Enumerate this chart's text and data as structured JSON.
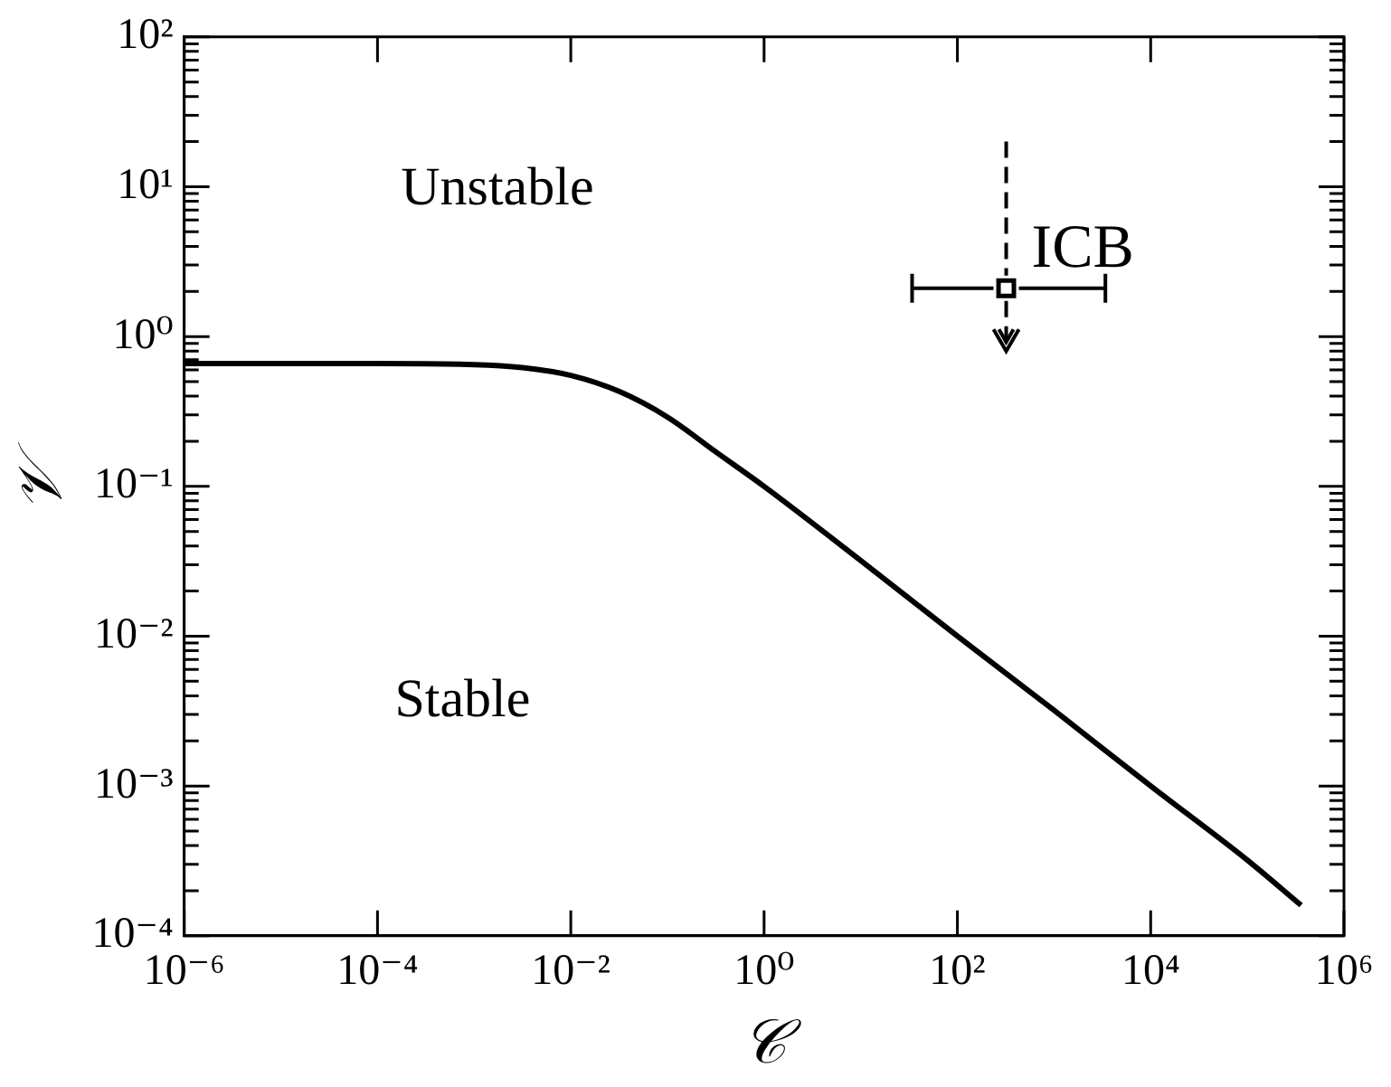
{
  "chart_data": {
    "type": "line",
    "xlabel": "𝒞",
    "ylabel": "𝒱",
    "log": "xy",
    "grid": false,
    "legend": false,
    "xlim": [
      1e-06,
      1000000.0
    ],
    "ylim": [
      0.0001,
      100
    ],
    "xticks": [
      {
        "value": 1e-06,
        "label": "10⁻⁶"
      },
      {
        "value": 0.0001,
        "label": "10⁻⁴"
      },
      {
        "value": 0.01,
        "label": "10⁻²"
      },
      {
        "value": 1,
        "label": "10⁰"
      },
      {
        "value": 100,
        "label": "10²"
      },
      {
        "value": 10000,
        "label": "10⁴"
      },
      {
        "value": 1000000,
        "label": "10⁶"
      }
    ],
    "yticks": [
      {
        "value": 0.0001,
        "label": "10⁻⁴"
      },
      {
        "value": 0.0002,
        "label": null
      },
      {
        "value": 0.0003,
        "label": null
      },
      {
        "value": 0.0004,
        "label": null
      },
      {
        "value": 0.0005,
        "label": null
      },
      {
        "value": 0.0006,
        "label": null
      },
      {
        "value": 0.0007,
        "label": null
      },
      {
        "value": 0.0008,
        "label": null
      },
      {
        "value": 0.0009,
        "label": null
      },
      {
        "value": 0.001,
        "label": "10⁻³"
      },
      {
        "value": 0.002,
        "label": null
      },
      {
        "value": 0.003,
        "label": null
      },
      {
        "value": 0.004,
        "label": null
      },
      {
        "value": 0.005,
        "label": null
      },
      {
        "value": 0.006,
        "label": null
      },
      {
        "value": 0.007,
        "label": null
      },
      {
        "value": 0.008,
        "label": null
      },
      {
        "value": 0.009,
        "label": null
      },
      {
        "value": 0.01,
        "label": "10⁻²"
      },
      {
        "value": 0.02,
        "label": null
      },
      {
        "value": 0.03,
        "label": null
      },
      {
        "value": 0.04,
        "label": null
      },
      {
        "value": 0.05,
        "label": null
      },
      {
        "value": 0.06,
        "label": null
      },
      {
        "value": 0.07,
        "label": null
      },
      {
        "value": 0.08,
        "label": null
      },
      {
        "value": 0.09,
        "label": null
      },
      {
        "value": 0.1,
        "label": "10⁻¹"
      },
      {
        "value": 0.2,
        "label": null
      },
      {
        "value": 0.3,
        "label": null
      },
      {
        "value": 0.4,
        "label": null
      },
      {
        "value": 0.5,
        "label": null
      },
      {
        "value": 0.6,
        "label": null
      },
      {
        "value": 0.7,
        "label": null
      },
      {
        "value": 0.8,
        "label": null
      },
      {
        "value": 0.9,
        "label": null
      },
      {
        "value": 1,
        "label": "10⁰"
      },
      {
        "value": 2,
        "label": null
      },
      {
        "value": 3,
        "label": null
      },
      {
        "value": 4,
        "label": null
      },
      {
        "value": 5,
        "label": null
      },
      {
        "value": 6,
        "label": null
      },
      {
        "value": 7,
        "label": null
      },
      {
        "value": 8,
        "label": null
      },
      {
        "value": 9,
        "label": null
      },
      {
        "value": 10,
        "label": "10¹"
      },
      {
        "value": 20,
        "label": null
      },
      {
        "value": 30,
        "label": null
      },
      {
        "value": 40,
        "label": null
      },
      {
        "value": 50,
        "label": null
      },
      {
        "value": 60,
        "label": null
      },
      {
        "value": 70,
        "label": null
      },
      {
        "value": 80,
        "label": null
      },
      {
        "value": 90,
        "label": null
      },
      {
        "value": 100,
        "label": "10²"
      }
    ],
    "annotations": [
      "Unstable",
      "Stable"
    ],
    "series": [
      {
        "color": "#000000",
        "marker": "none",
        "line_style": "solid",
        "x": [
          1e-06,
          0.0001,
          0.001,
          0.00316,
          0.01,
          0.0316,
          0.1,
          0.316,
          1,
          10,
          100,
          1000,
          10000,
          100000,
          360000
        ],
        "values": [
          0.66,
          0.66,
          0.65,
          0.62,
          0.55,
          0.43,
          0.29,
          0.17,
          0.1,
          0.032,
          0.01,
          0.0032,
          0.001,
          0.00032,
          0.00016
        ]
      },
      {
        "type": "scatter",
        "name": "ICB",
        "color": "#000000",
        "marker": "square",
        "x": [
          320
        ],
        "values": [
          2.1
        ],
        "xerrors": [
          [
            34,
            3400
          ]
        ],
        "errors": [
          [
            0.8,
            20
          ]
        ]
      }
    ]
  }
}
